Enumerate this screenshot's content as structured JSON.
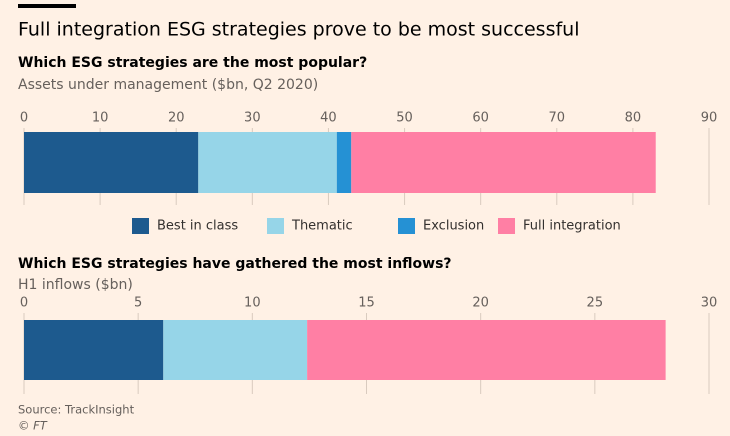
{
  "title": "Full integration ESG strategies prove to be most successful",
  "source": "Source: TrackInsight",
  "copyright": "© FT",
  "chart_data": [
    {
      "type": "stacked-bar",
      "orientation": "horizontal",
      "title": "Which ESG strategies are the most popular?",
      "subtitle": "Assets under management ($bn, Q2 2020)",
      "xlim": [
        0,
        90
      ],
      "xticks": [
        0,
        10,
        20,
        30,
        40,
        50,
        60,
        70,
        80,
        90
      ],
      "grid": true,
      "legend": "bottom",
      "series": [
        {
          "name": "Best in class",
          "color": "#1d5a8e",
          "values": [
            22.9
          ]
        },
        {
          "name": "Thematic",
          "color": "#96d5e8",
          "values": [
            18.2
          ]
        },
        {
          "name": "Exclusion",
          "color": "#2591d4",
          "values": [
            1.9
          ]
        },
        {
          "name": "Full integration",
          "color": "#ff7fa4",
          "values": [
            40.0
          ]
        }
      ]
    },
    {
      "type": "stacked-bar",
      "orientation": "horizontal",
      "title": "Which ESG strategies have gathered the most inflows?",
      "subtitle": "H1 inflows ($bn)",
      "xlim": [
        0,
        30
      ],
      "xticks": [
        0,
        5,
        10,
        15,
        20,
        25,
        30
      ],
      "grid": true,
      "series": [
        {
          "color": "#1d5a8e",
          "values": [
            6.1
          ]
        },
        {
          "color": "#96d5e8",
          "values": [
            6.3
          ]
        },
        {
          "color": "#ff7fa4",
          "values": [
            15.7
          ]
        }
      ]
    }
  ]
}
